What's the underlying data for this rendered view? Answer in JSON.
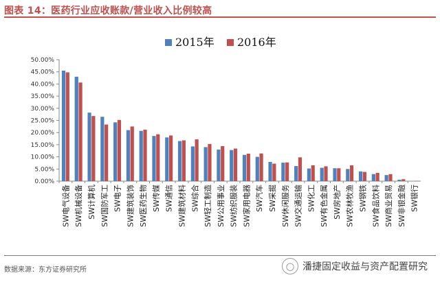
{
  "header": {
    "title": "图表 14：医药行业应收账款/营业收入比例较高"
  },
  "footer": {
    "source": "数据来源：东方证券研究所",
    "watermark_text": "潘捷固定收益与资产配置研究",
    "watermark_icon": "chat-bubble-icon"
  },
  "colors": {
    "accent": "#c0504d",
    "series_2015": "#4f81bd",
    "series_2016": "#c0504d"
  },
  "chart_data": {
    "type": "bar",
    "title": "",
    "xlabel": "",
    "ylabel": "",
    "ylim": [
      0,
      50
    ],
    "y_tick_values": [
      0,
      5,
      10,
      15,
      20,
      25,
      30,
      35,
      40,
      45,
      50
    ],
    "y_tick_labels": [
      "0.00%",
      "5.00%",
      "10.00%",
      "15.00%",
      "20.00%",
      "25.00%",
      "30.00%",
      "35.00%",
      "40.00%",
      "45.00%",
      "50.00%"
    ],
    "grid": false,
    "legend_position": "top-center",
    "categories": [
      "SW电气设备",
      "SW机械设备",
      "SW计算机",
      "SW国防军工",
      "SW电子",
      "SW建筑装饰",
      "SW医药生物",
      "SW传媒",
      "SW通信",
      "SW建筑材料",
      "SW综合",
      "SW轻工制造",
      "SW公用事业",
      "SW纺织服装",
      "SW家用电器",
      "SW汽车",
      "SW采掘",
      "SW休闲服务",
      "SW交通运输",
      "SW化工",
      "SW有色金属",
      "SW房地产",
      "SW农林牧渔",
      "SW钢铁",
      "SW食品饮料",
      "SW商业贸易",
      "SW非银金融",
      "SW银行"
    ],
    "series": [
      {
        "name": "2015年",
        "color": "#4f81bd",
        "values": [
          45.5,
          43.0,
          28.2,
          26.5,
          24.2,
          21.0,
          20.7,
          18.6,
          18.0,
          16.5,
          14.3,
          14.0,
          13.0,
          12.8,
          10.8,
          10.0,
          7.9,
          7.6,
          6.2,
          5.2,
          5.5,
          5.3,
          5.0,
          4.0,
          2.9,
          2.5,
          0.6,
          0.0
        ]
      },
      {
        "name": "2016年",
        "color": "#c0504d",
        "values": [
          44.8,
          40.6,
          26.8,
          23.3,
          25.2,
          22.5,
          21.2,
          19.3,
          18.8,
          16.8,
          17.2,
          15.3,
          14.4,
          13.4,
          11.3,
          11.4,
          7.2,
          7.7,
          9.8,
          6.5,
          6.1,
          5.3,
          6.5,
          3.8,
          3.4,
          2.9,
          0.8,
          0.1
        ]
      }
    ]
  }
}
